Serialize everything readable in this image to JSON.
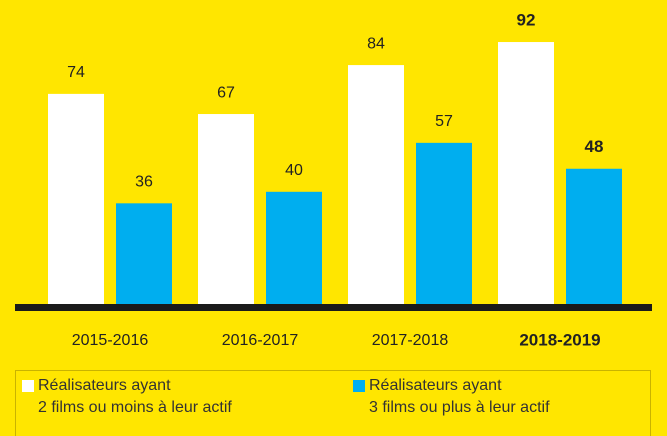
{
  "chart_data": {
    "type": "bar",
    "categories": [
      "2015-2016",
      "2016-2017",
      "2017-2018",
      "2018-2019"
    ],
    "series": [
      {
        "name": "Réalisateurs ayant\n2 films ou moins à leur actif",
        "color": "#ffffff",
        "values": [
          74,
          67,
          84,
          92
        ]
      },
      {
        "name": "Réalisateurs ayant\n3 films ou plus à leur actif",
        "color": "#00aeef",
        "values": [
          36,
          40,
          57,
          48
        ]
      }
    ],
    "ylim": [
      0,
      100
    ],
    "highlight_index": 3,
    "background": "#ffe600"
  }
}
